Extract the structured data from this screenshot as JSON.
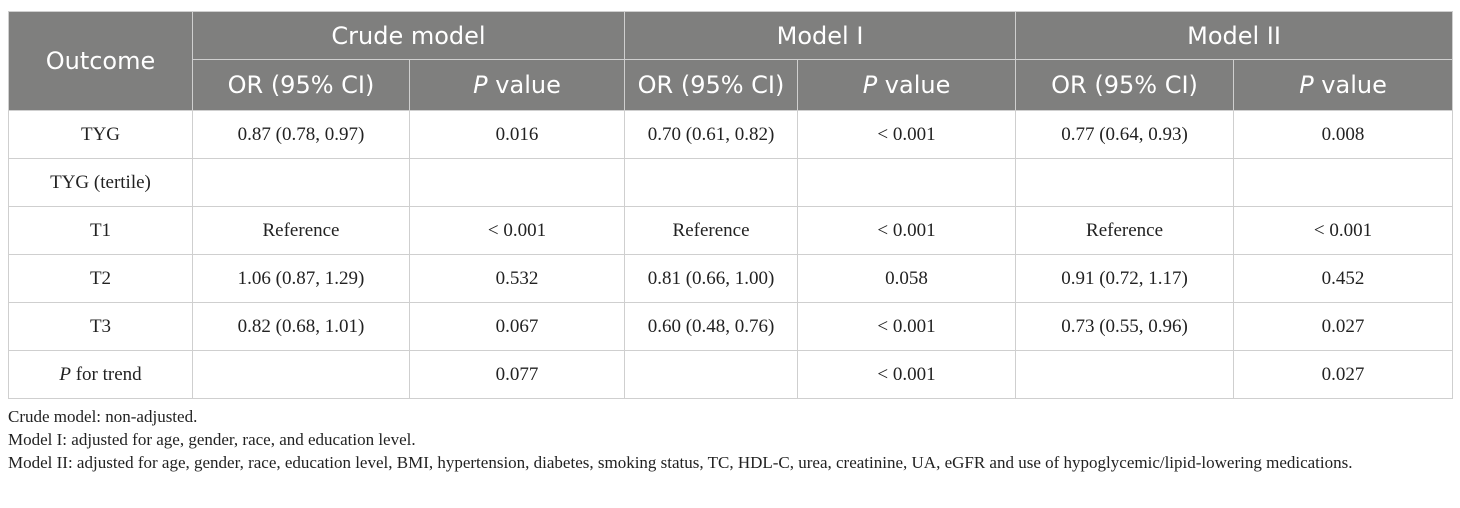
{
  "header": {
    "outcome": "Outcome",
    "groups": [
      "Crude model",
      "Model I",
      "Model II"
    ],
    "or_label": "OR (95% CI)",
    "p_italic": "P",
    "p_rest": " value"
  },
  "rows": [
    {
      "label": "TYG",
      "cells": [
        "0.87 (0.78, 0.97)",
        "0.016",
        "0.70 (0.61, 0.82)",
        "< 0.001",
        "0.77 (0.64, 0.93)",
        "0.008"
      ]
    },
    {
      "label": "TYG (tertile)",
      "cells": [
        "",
        "",
        "",
        "",
        "",
        ""
      ]
    },
    {
      "label": "T1",
      "cells": [
        "Reference",
        "< 0.001",
        "Reference",
        "< 0.001",
        "Reference",
        "< 0.001"
      ]
    },
    {
      "label": "T2",
      "cells": [
        "1.06 (0.87, 1.29)",
        "0.532",
        "0.81 (0.66, 1.00)",
        "0.058",
        "0.91 (0.72, 1.17)",
        "0.452"
      ]
    },
    {
      "label": "T3",
      "cells": [
        "0.82 (0.68, 1.01)",
        "0.067",
        "0.60 (0.48, 0.76)",
        "< 0.001",
        "0.73 (0.55, 0.96)",
        "0.027"
      ]
    },
    {
      "label_italic": "P",
      "label_rest": " for trend",
      "cells": [
        "",
        "0.077",
        "",
        "< 0.001",
        "",
        "0.027"
      ]
    }
  ],
  "notes": [
    "Crude model: non-adjusted.",
    "Model I: adjusted for age, gender, race, and education level.",
    "Model II: adjusted for age, gender, race, education level, BMI, hypertension, diabetes, smoking status, TC, HDL-C, urea, creatinine, UA, eGFR and use of hypoglycemic/lipid-lowering medications."
  ]
}
